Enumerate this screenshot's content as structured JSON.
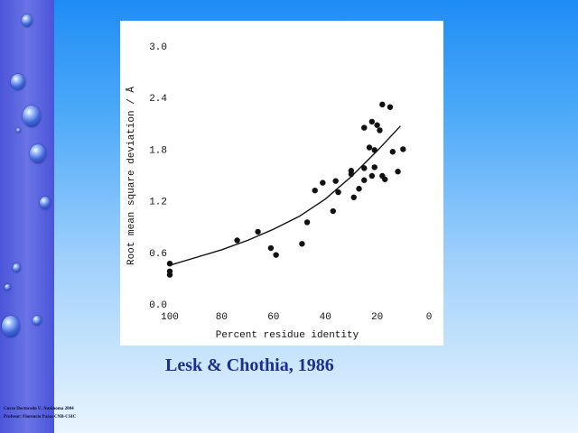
{
  "caption": "Lesk & Chothia, 1986",
  "credits": {
    "line1": "Curso Doctorado U. Autónoma 2004",
    "line2": "Profesor: Florencio Pazos CNB-CSIC"
  },
  "colors": {
    "background_top": "#1f8cf5",
    "background_bottom": "#e9f5fe",
    "sidebar": "#5560dd",
    "caption": "#1c2f8f",
    "plot_ink": "#111111"
  },
  "chart_data": {
    "type": "scatter",
    "xlabel": "Percent residue identity",
    "ylabel": "Root mean square deviation / Å",
    "xlim": [
      100,
      0
    ],
    "ylim": [
      0.0,
      3.0
    ],
    "x_ticks": [
      "100",
      "80",
      "60",
      "40",
      "20",
      "0"
    ],
    "y_ticks": [
      "0.0",
      "0.6",
      "1.2",
      "1.8",
      "2.4",
      "3.0"
    ],
    "x_tick_values": [
      100,
      80,
      60,
      40,
      20,
      0
    ],
    "y_tick_values": [
      0.0,
      0.6,
      1.2,
      1.8,
      2.4,
      3.0
    ],
    "grid": false,
    "points": [
      {
        "x": 100,
        "y": 0.47
      },
      {
        "x": 100,
        "y": 0.38
      },
      {
        "x": 100,
        "y": 0.34
      },
      {
        "x": 74,
        "y": 0.74
      },
      {
        "x": 66,
        "y": 0.84
      },
      {
        "x": 61,
        "y": 0.65
      },
      {
        "x": 59,
        "y": 0.57
      },
      {
        "x": 49,
        "y": 0.7
      },
      {
        "x": 47,
        "y": 0.95
      },
      {
        "x": 44,
        "y": 1.32
      },
      {
        "x": 41,
        "y": 1.41
      },
      {
        "x": 37,
        "y": 1.08
      },
      {
        "x": 36,
        "y": 1.43
      },
      {
        "x": 35,
        "y": 1.3
      },
      {
        "x": 30,
        "y": 1.51
      },
      {
        "x": 30,
        "y": 1.55
      },
      {
        "x": 29,
        "y": 1.24
      },
      {
        "x": 27,
        "y": 1.34
      },
      {
        "x": 25,
        "y": 1.44
      },
      {
        "x": 25,
        "y": 1.58
      },
      {
        "x": 25,
        "y": 2.05
      },
      {
        "x": 23,
        "y": 1.82
      },
      {
        "x": 22,
        "y": 1.49
      },
      {
        "x": 22,
        "y": 2.12
      },
      {
        "x": 21,
        "y": 1.79
      },
      {
        "x": 21,
        "y": 1.59
      },
      {
        "x": 20,
        "y": 2.08
      },
      {
        "x": 19,
        "y": 2.02
      },
      {
        "x": 18,
        "y": 1.49
      },
      {
        "x": 18,
        "y": 2.32
      },
      {
        "x": 17,
        "y": 1.45
      },
      {
        "x": 15,
        "y": 2.29
      },
      {
        "x": 14,
        "y": 1.77
      },
      {
        "x": 12,
        "y": 1.54
      },
      {
        "x": 10,
        "y": 1.8
      }
    ],
    "trend_line": {
      "x": [
        100,
        90,
        80,
        70,
        60,
        50,
        40,
        30,
        20,
        11
      ],
      "y": [
        0.45,
        0.54,
        0.63,
        0.74,
        0.87,
        1.02,
        1.22,
        1.48,
        1.78,
        2.07
      ]
    }
  }
}
